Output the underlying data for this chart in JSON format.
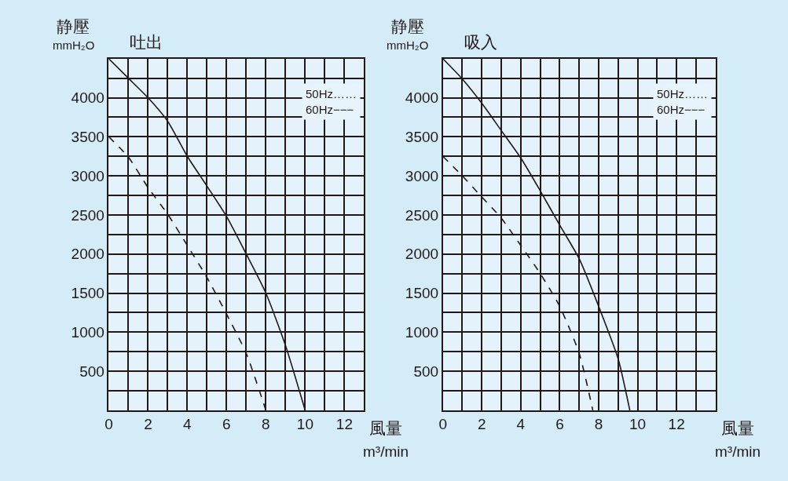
{
  "chart_data": [
    {
      "type": "line",
      "title": "吐出",
      "xlabel": "風量\nm³/min",
      "ylabel": "静壓\nmmH₂O",
      "xlim": [
        0,
        13
      ],
      "ylim": [
        0,
        4500
      ],
      "xticks": [
        0,
        {
          "value": 1,
          "label": null
        },
        2,
        {
          "value": 3,
          "label": null
        },
        4,
        {
          "value": 5,
          "label": null
        },
        6,
        {
          "value": 7,
          "label": null
        },
        8,
        {
          "value": 9,
          "label": null
        },
        10,
        {
          "value": 11,
          "label": null
        },
        12,
        {
          "value": 13,
          "label": null
        }
      ],
      "yticks": [
        {
          "value": 250,
          "label": null
        },
        500,
        {
          "value": 750,
          "label": null
        },
        1000,
        {
          "value": 1250,
          "label": null
        },
        1500,
        {
          "value": 1750,
          "label": null
        },
        2000,
        {
          "value": 2250,
          "label": null
        },
        2500,
        {
          "value": 2750,
          "label": null
        },
        3000,
        {
          "value": 3250,
          "label": null
        },
        3500,
        {
          "value": 3750,
          "label": null
        },
        4000,
        {
          "value": 4250,
          "label": null
        },
        {
          "value": 4500,
          "label": null
        }
      ],
      "grid": true,
      "annotations": [
        "50Hz……",
        "60Hz−−−"
      ],
      "series": [
        {
          "color": "#231815",
          "line_style": "solid",
          "x": [
            0,
            1,
            2,
            3,
            4,
            5,
            6,
            7,
            8,
            9,
            10
          ],
          "values": [
            4500,
            4250,
            4000,
            3700,
            3250,
            2870,
            2480,
            2000,
            1500,
            830,
            0
          ]
        },
        {
          "color": "#231815",
          "line_style": "dashed",
          "x": [
            0,
            1,
            2,
            3,
            4,
            5,
            6,
            7,
            8
          ],
          "values": [
            3500,
            3240,
            2850,
            2510,
            2110,
            1700,
            1230,
            730,
            0
          ]
        }
      ]
    },
    {
      "type": "line",
      "title": "吸入",
      "xlabel": "風量\nm³/min",
      "ylabel": "静壓\nmmH₂O",
      "xlim": [
        0,
        14
      ],
      "ylim": [
        0,
        4500
      ],
      "xticks": [
        0,
        {
          "value": 1,
          "label": null
        },
        2,
        {
          "value": 3,
          "label": null
        },
        4,
        {
          "value": 5,
          "label": null
        },
        6,
        {
          "value": 7,
          "label": null
        },
        8,
        {
          "value": 9,
          "label": null
        },
        10,
        {
          "value": 11,
          "label": null
        },
        12,
        {
          "value": 13,
          "label": null
        },
        {
          "value": 14,
          "label": null
        }
      ],
      "yticks": [
        {
          "value": 250,
          "label": null
        },
        500,
        {
          "value": 750,
          "label": null
        },
        1000,
        {
          "value": 1250,
          "label": null
        },
        1500,
        {
          "value": 1750,
          "label": null
        },
        2000,
        {
          "value": 2250,
          "label": null
        },
        2500,
        {
          "value": 2750,
          "label": null
        },
        3000,
        {
          "value": 3250,
          "label": null
        },
        3500,
        {
          "value": 3750,
          "label": null
        },
        4000,
        {
          "value": 4250,
          "label": null
        },
        {
          "value": 4500,
          "label": null
        }
      ],
      "grid": true,
      "annotations": [
        "50Hz……",
        "60Hz−−−"
      ],
      "series": [
        {
          "color": "#231815",
          "line_style": "solid",
          "x": [
            0,
            1,
            2,
            3,
            4,
            5,
            6,
            7,
            8,
            9,
            9.6
          ],
          "values": [
            4500,
            4240,
            3930,
            3580,
            3230,
            2810,
            2370,
            1940,
            1330,
            660,
            0
          ]
        },
        {
          "color": "#231815",
          "line_style": "dashed",
          "x": [
            0,
            1,
            2,
            3,
            4,
            5,
            6,
            7,
            7.7
          ],
          "values": [
            3250,
            3000,
            2730,
            2460,
            2110,
            1750,
            1330,
            730,
            0
          ]
        }
      ]
    }
  ]
}
